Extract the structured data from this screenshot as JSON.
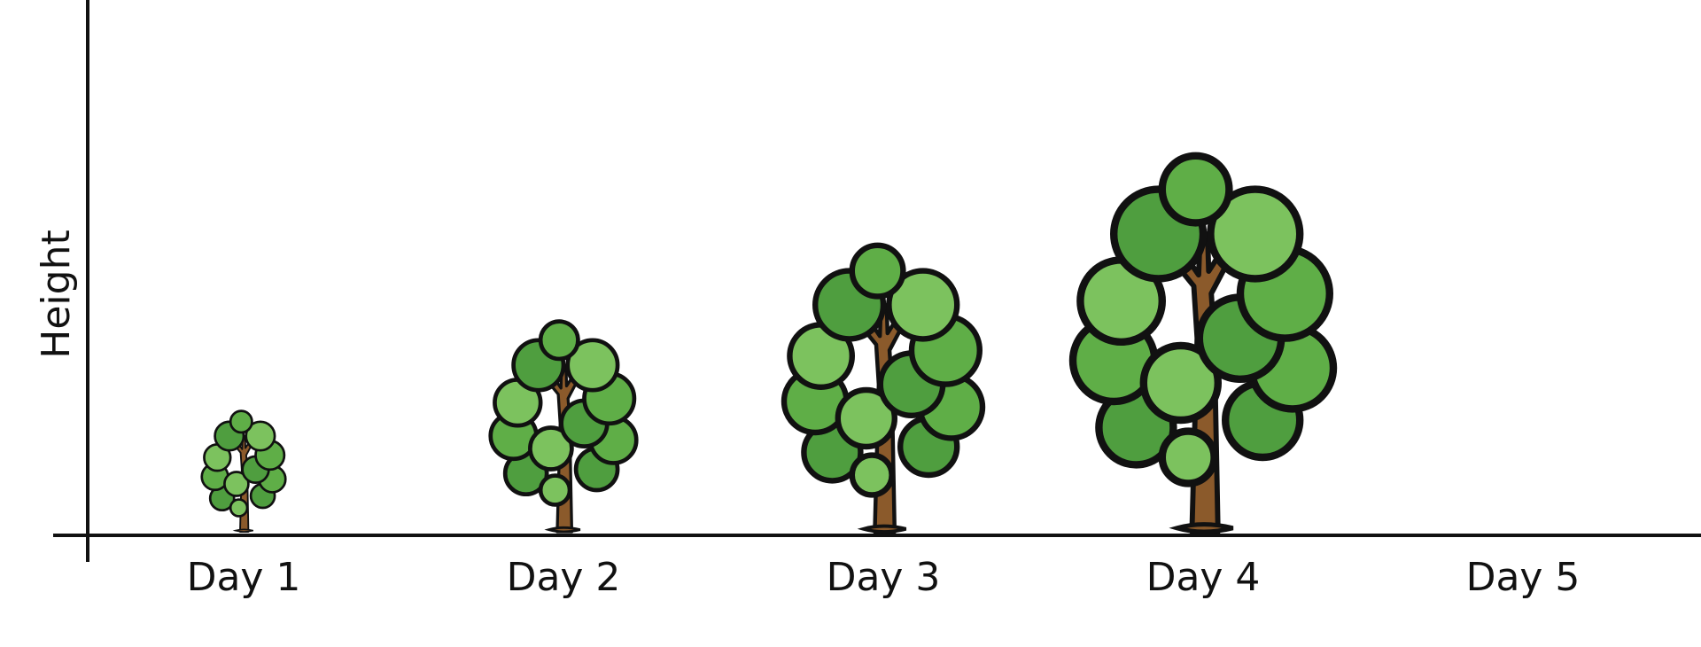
{
  "chart_data": {
    "type": "bar",
    "ylabel": "Height",
    "xlabel": "",
    "categories": [
      "Day 1",
      "Day 2",
      "Day 3",
      "Day 4",
      "Day 5"
    ],
    "values": [
      1.35,
      2.35,
      3.2,
      4.2,
      null
    ],
    "marker": "tree-icon",
    "grid": false,
    "colors": {
      "foliage_light": "#7cc25e",
      "foliage_dark": "#4f9e3f",
      "trunk": "#8b5a2b",
      "outline": "#111111",
      "axis": "#111111"
    }
  }
}
